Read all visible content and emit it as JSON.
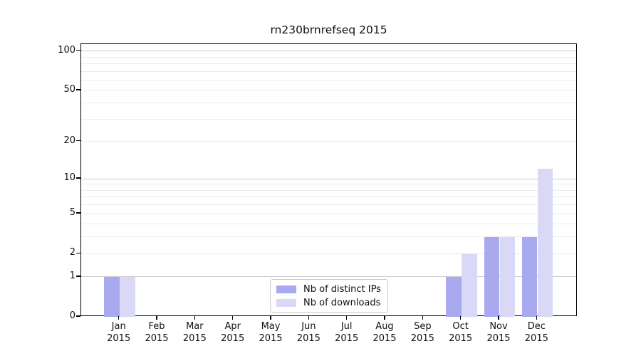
{
  "title": "rn230brnrefseq 2015",
  "colors": {
    "bar_distinct_ips": "#a9a9f0",
    "bar_downloads": "#d9d9f7",
    "grid_major": "#c8c8c8",
    "grid_minor": "#ebebeb",
    "spine": "#000000",
    "background": "#ffffff"
  },
  "legend": {
    "items": [
      {
        "label": "Nb of distinct IPs",
        "color": "#a9a9f0"
      },
      {
        "label": "Nb of downloads",
        "color": "#d9d9f7"
      }
    ]
  },
  "axes": {
    "y_tick_values": [
      100,
      50,
      20,
      10,
      5,
      2,
      1,
      0
    ],
    "x_months": [
      "Jan",
      "Feb",
      "Mar",
      "Apr",
      "May",
      "Jun",
      "Jul",
      "Aug",
      "Sep",
      "Oct",
      "Nov",
      "Dec"
    ],
    "x_year": "2015"
  },
  "chart_data": {
    "type": "bar",
    "title": "rn230brnrefseq 2015",
    "xlabel": "",
    "ylabel": "",
    "y_scale": "log1p",
    "ylim": [
      0,
      110
    ],
    "grid": "on",
    "legend_position": "bottom-center",
    "categories": [
      "Jan 2015",
      "Feb 2015",
      "Mar 2015",
      "Apr 2015",
      "May 2015",
      "Jun 2015",
      "Jul 2015",
      "Aug 2015",
      "Sep 2015",
      "Oct 2015",
      "Nov 2015",
      "Dec 2015"
    ],
    "series": [
      {
        "name": "Nb of distinct IPs",
        "color": "#a9a9f0",
        "values": [
          1,
          0,
          0,
          0,
          0,
          0,
          0,
          0,
          0,
          1,
          3,
          3
        ]
      },
      {
        "name": "Nb of downloads",
        "color": "#d9d9f7",
        "values": [
          1,
          0,
          0,
          0,
          0,
          0,
          0,
          0,
          0,
          2,
          3,
          12
        ]
      }
    ],
    "y_tick_labels": [
      "100",
      "50",
      "20",
      "10",
      "5",
      "2",
      "1",
      "0"
    ],
    "major_y_gridlines": [
      1,
      10,
      100
    ],
    "minor_y_gridlines": [
      2,
      3,
      4,
      5,
      6,
      7,
      8,
      9,
      20,
      30,
      40,
      50,
      60,
      70,
      80,
      90
    ]
  }
}
